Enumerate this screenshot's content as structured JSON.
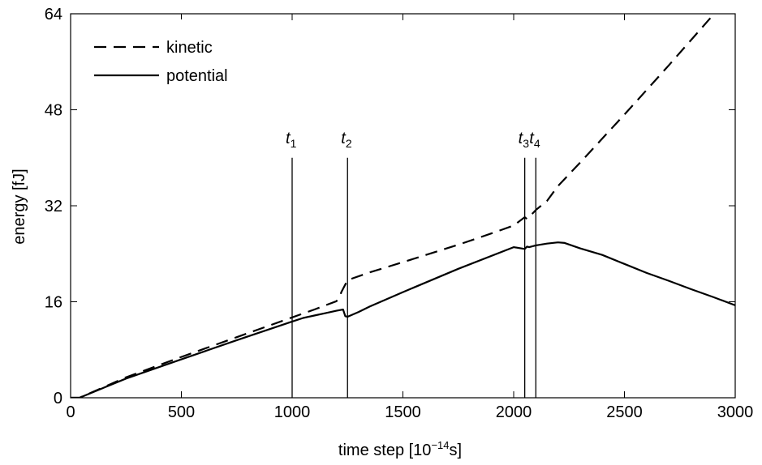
{
  "chart_data": {
    "type": "line",
    "xlabel": {
      "prefix": "time step [10",
      "exponent": "−14",
      "suffix": "s]"
    },
    "ylabel": "energy [fJ]",
    "xlim": [
      0,
      3000
    ],
    "ylim": [
      0,
      64
    ],
    "xticks": [
      0,
      500,
      1000,
      1500,
      2000,
      2500,
      3000
    ],
    "yticks": [
      0,
      16,
      32,
      48,
      64
    ],
    "grid": false,
    "legend_position": "top-left",
    "series": [
      {
        "name": "kinetic",
        "style": "dashed",
        "color": "#000000",
        "x": [
          0,
          40,
          250,
          500,
          750,
          1000,
          1100,
          1200,
          1215,
          1222,
          1250,
          1350,
          1500,
          1750,
          1900,
          2000,
          2050,
          2060,
          2090,
          2100,
          2150,
          2200,
          2300,
          2400,
          2500,
          2600,
          2700,
          2800,
          2900,
          3000
        ],
        "y": [
          0,
          0,
          3.4,
          6.8,
          10.1,
          13.4,
          14.7,
          16.1,
          16.8,
          17.6,
          19.6,
          20.9,
          22.6,
          25.5,
          27.4,
          28.7,
          30.1,
          29.8,
          30.9,
          31.3,
          32.8,
          35.3,
          39.2,
          43.2,
          47.2,
          51.3,
          55.4,
          59.6,
          63.8,
          67.5
        ]
      },
      {
        "name": "potential",
        "style": "solid",
        "color": "#000000",
        "x": [
          0,
          40,
          250,
          500,
          750,
          1000,
          1050,
          1100,
          1150,
          1200,
          1230,
          1240,
          1250,
          1300,
          1350,
          1500,
          1750,
          2000,
          2050,
          2060,
          2070,
          2100,
          2150,
          2200,
          2230,
          2300,
          2400,
          2500,
          2600,
          2700,
          2800,
          2900,
          3000
        ],
        "y": [
          0,
          0,
          3.2,
          6.4,
          9.6,
          12.7,
          13.3,
          13.7,
          14.1,
          14.5,
          14.7,
          13.6,
          13.5,
          14.3,
          15.2,
          17.6,
          21.5,
          25.1,
          24.8,
          25.2,
          25.1,
          25.4,
          25.7,
          25.9,
          25.8,
          24.9,
          23.8,
          22.3,
          20.8,
          19.5,
          18.1,
          16.8,
          15.4
        ]
      }
    ],
    "markers": [
      {
        "label": "t",
        "sub": "1",
        "x": 1000
      },
      {
        "label": "t",
        "sub": "2",
        "x": 1250
      },
      {
        "label": "t",
        "sub": "3",
        "x": 2050
      },
      {
        "label": "t",
        "sub": "4",
        "x": 2100
      }
    ],
    "marker_top_y": 40
  }
}
